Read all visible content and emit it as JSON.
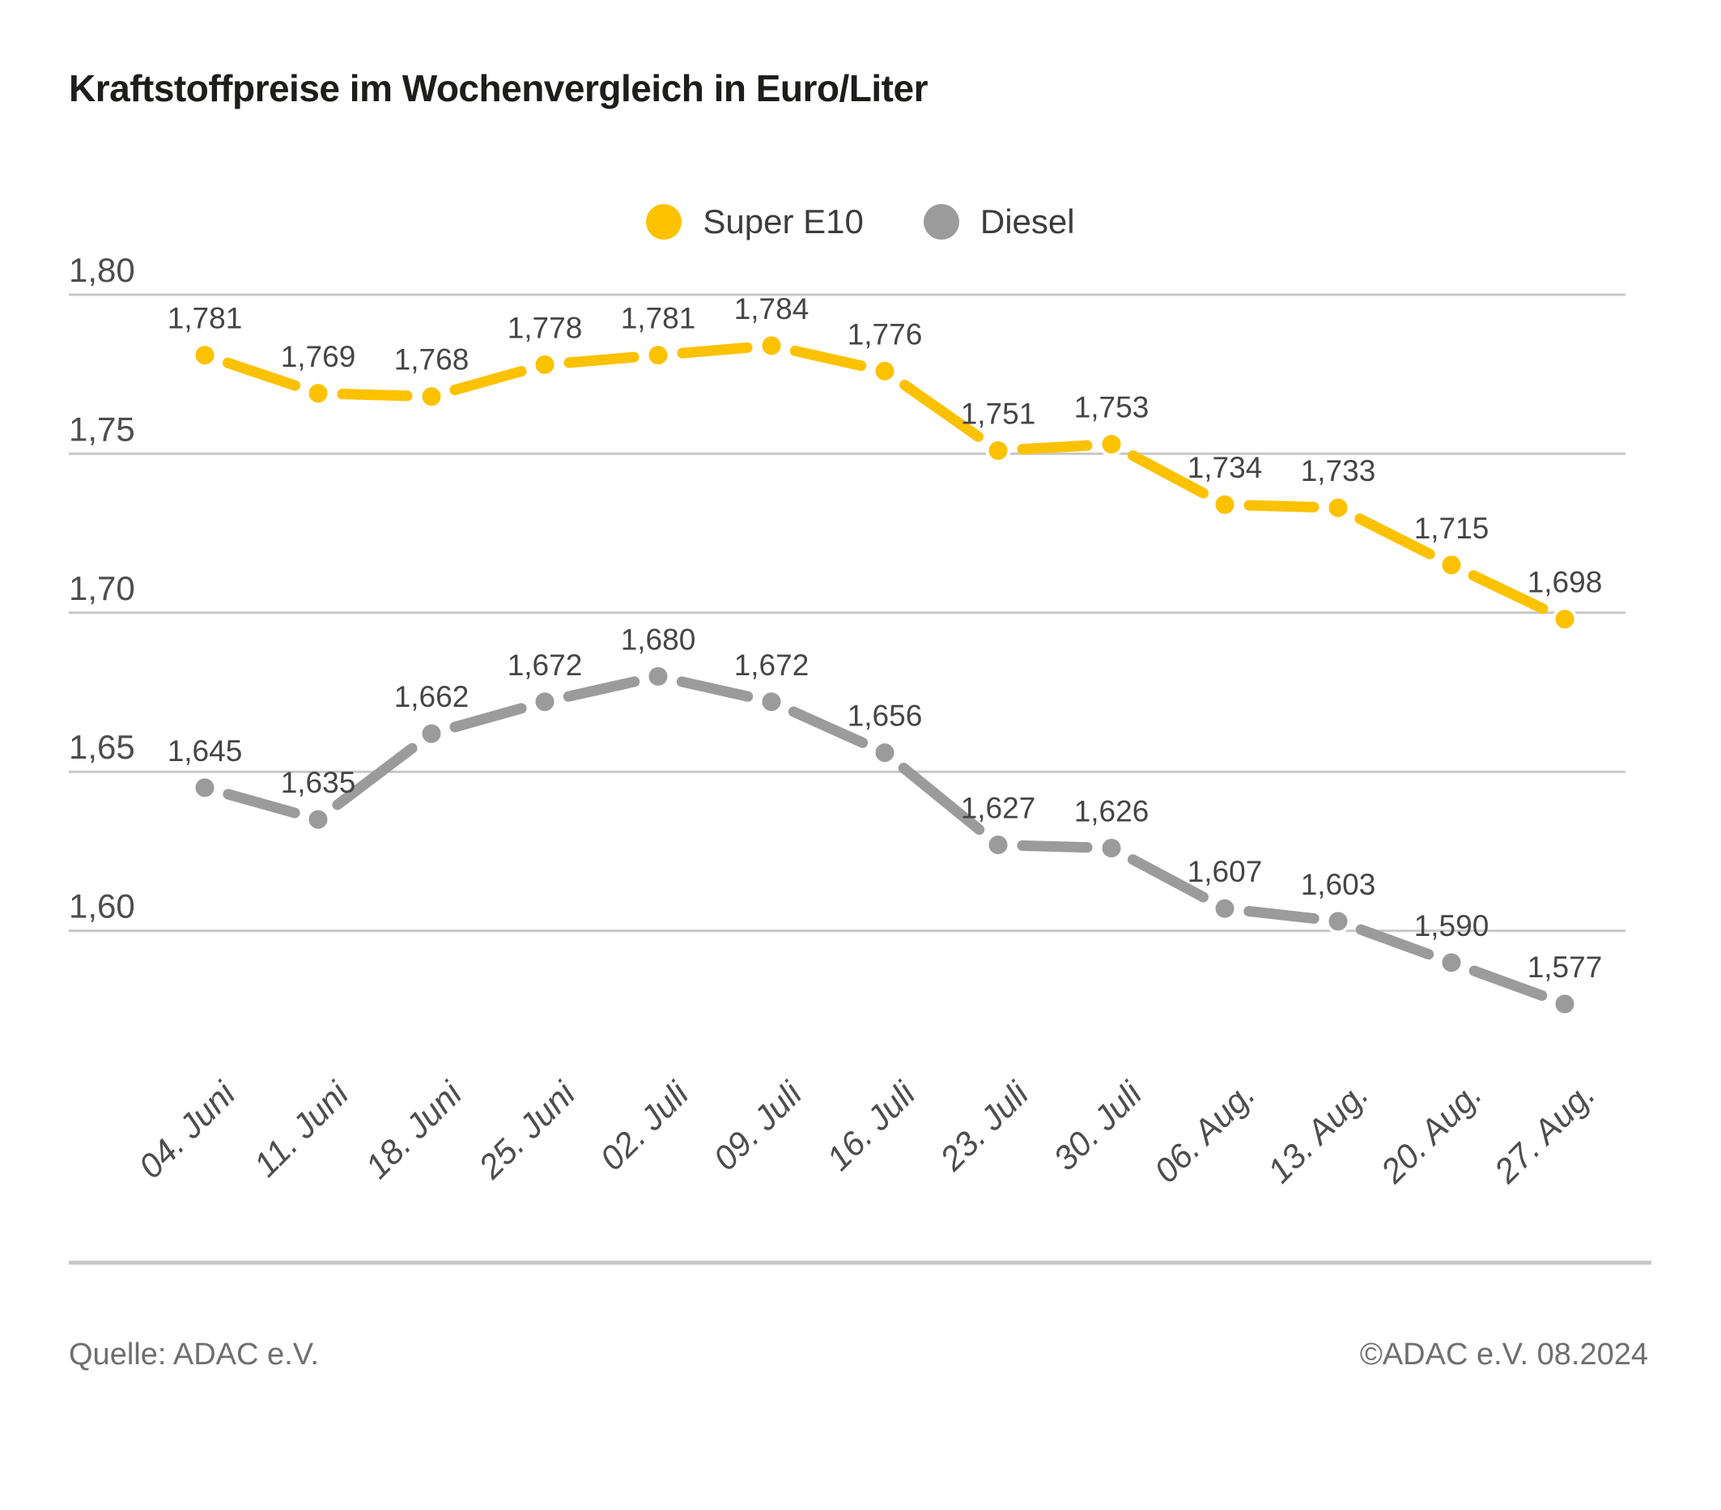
{
  "title": "Kraftstoffpreise im Wochenvergleich in Euro/Liter",
  "legend": [
    {
      "label": "Super E10",
      "color": "#FCC200"
    },
    {
      "label": "Diesel",
      "color": "#9B9B9B"
    }
  ],
  "footer": {
    "source": "Quelle: ADAC e.V.",
    "copyright": "©ADAC e.V. 08.2024"
  },
  "chart_data": {
    "type": "line",
    "title": "Kraftstoffpreise im Wochenvergleich in Euro/Liter",
    "xlabel": "",
    "ylabel": "Euro/Liter",
    "grid": "horizontal",
    "legend_position": "top-center",
    "ylim": [
      1.575,
      1.815
    ],
    "categories": [
      "04. Juni",
      "11. Juni",
      "18. Juni",
      "25. Juni",
      "02. Juli",
      "09. Juli",
      "16. Juli",
      "23. Juli",
      "30. Juli",
      "06. Aug.",
      "13. Aug.",
      "20. Aug.",
      "27. Aug."
    ],
    "y_ticks": [
      {
        "value": 1.8,
        "label": "1,80"
      },
      {
        "value": 1.75,
        "label": "1,75"
      },
      {
        "value": 1.7,
        "label": "1,70"
      },
      {
        "value": 1.65,
        "label": "1,65"
      },
      {
        "value": 1.6,
        "label": "1,60"
      }
    ],
    "series": [
      {
        "name": "Super E10",
        "color": "#FCC200",
        "values": [
          1.781,
          1.769,
          1.768,
          1.778,
          1.781,
          1.784,
          1.776,
          1.751,
          1.753,
          1.734,
          1.733,
          1.715,
          1.698
        ],
        "labels": [
          "1,781",
          "1,769",
          "1,768",
          "1,778",
          "1,781",
          "1,784",
          "1,776",
          "1,751",
          "1,753",
          "1,734",
          "1,733",
          "1,715",
          "1,698"
        ]
      },
      {
        "name": "Diesel",
        "color": "#9B9B9B",
        "values": [
          1.645,
          1.635,
          1.662,
          1.672,
          1.68,
          1.672,
          1.656,
          1.627,
          1.626,
          1.607,
          1.603,
          1.59,
          1.577
        ],
        "labels": [
          "1,645",
          "1,635",
          "1,662",
          "1,672",
          "1,680",
          "1,672",
          "1,656",
          "1,627",
          "1,626",
          "1,607",
          "1,603",
          "1,590",
          "1,577"
        ]
      }
    ]
  }
}
